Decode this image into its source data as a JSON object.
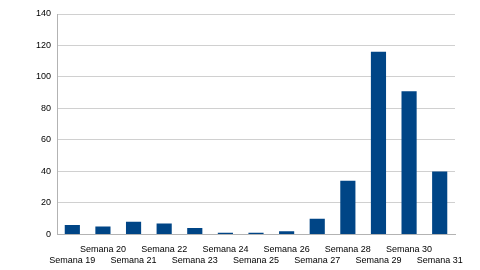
{
  "chart_data": {
    "type": "bar",
    "categories": [
      "Semana 19",
      "Semana 20",
      "Semana 21",
      "Semana 22",
      "Semana 23",
      "Semana 24",
      "Semana 25",
      "Semana 26",
      "Semana 27",
      "Semana 28",
      "Semana 29",
      "Semana 30",
      "Semana 31"
    ],
    "values": [
      6,
      5,
      8,
      7,
      4,
      1,
      1,
      2,
      10,
      34,
      116,
      91,
      40
    ],
    "color": "#004586",
    "ylim": [
      0,
      140
    ],
    "yticks": [
      0,
      20,
      40,
      60,
      80,
      100,
      120,
      140
    ],
    "grid": true
  }
}
